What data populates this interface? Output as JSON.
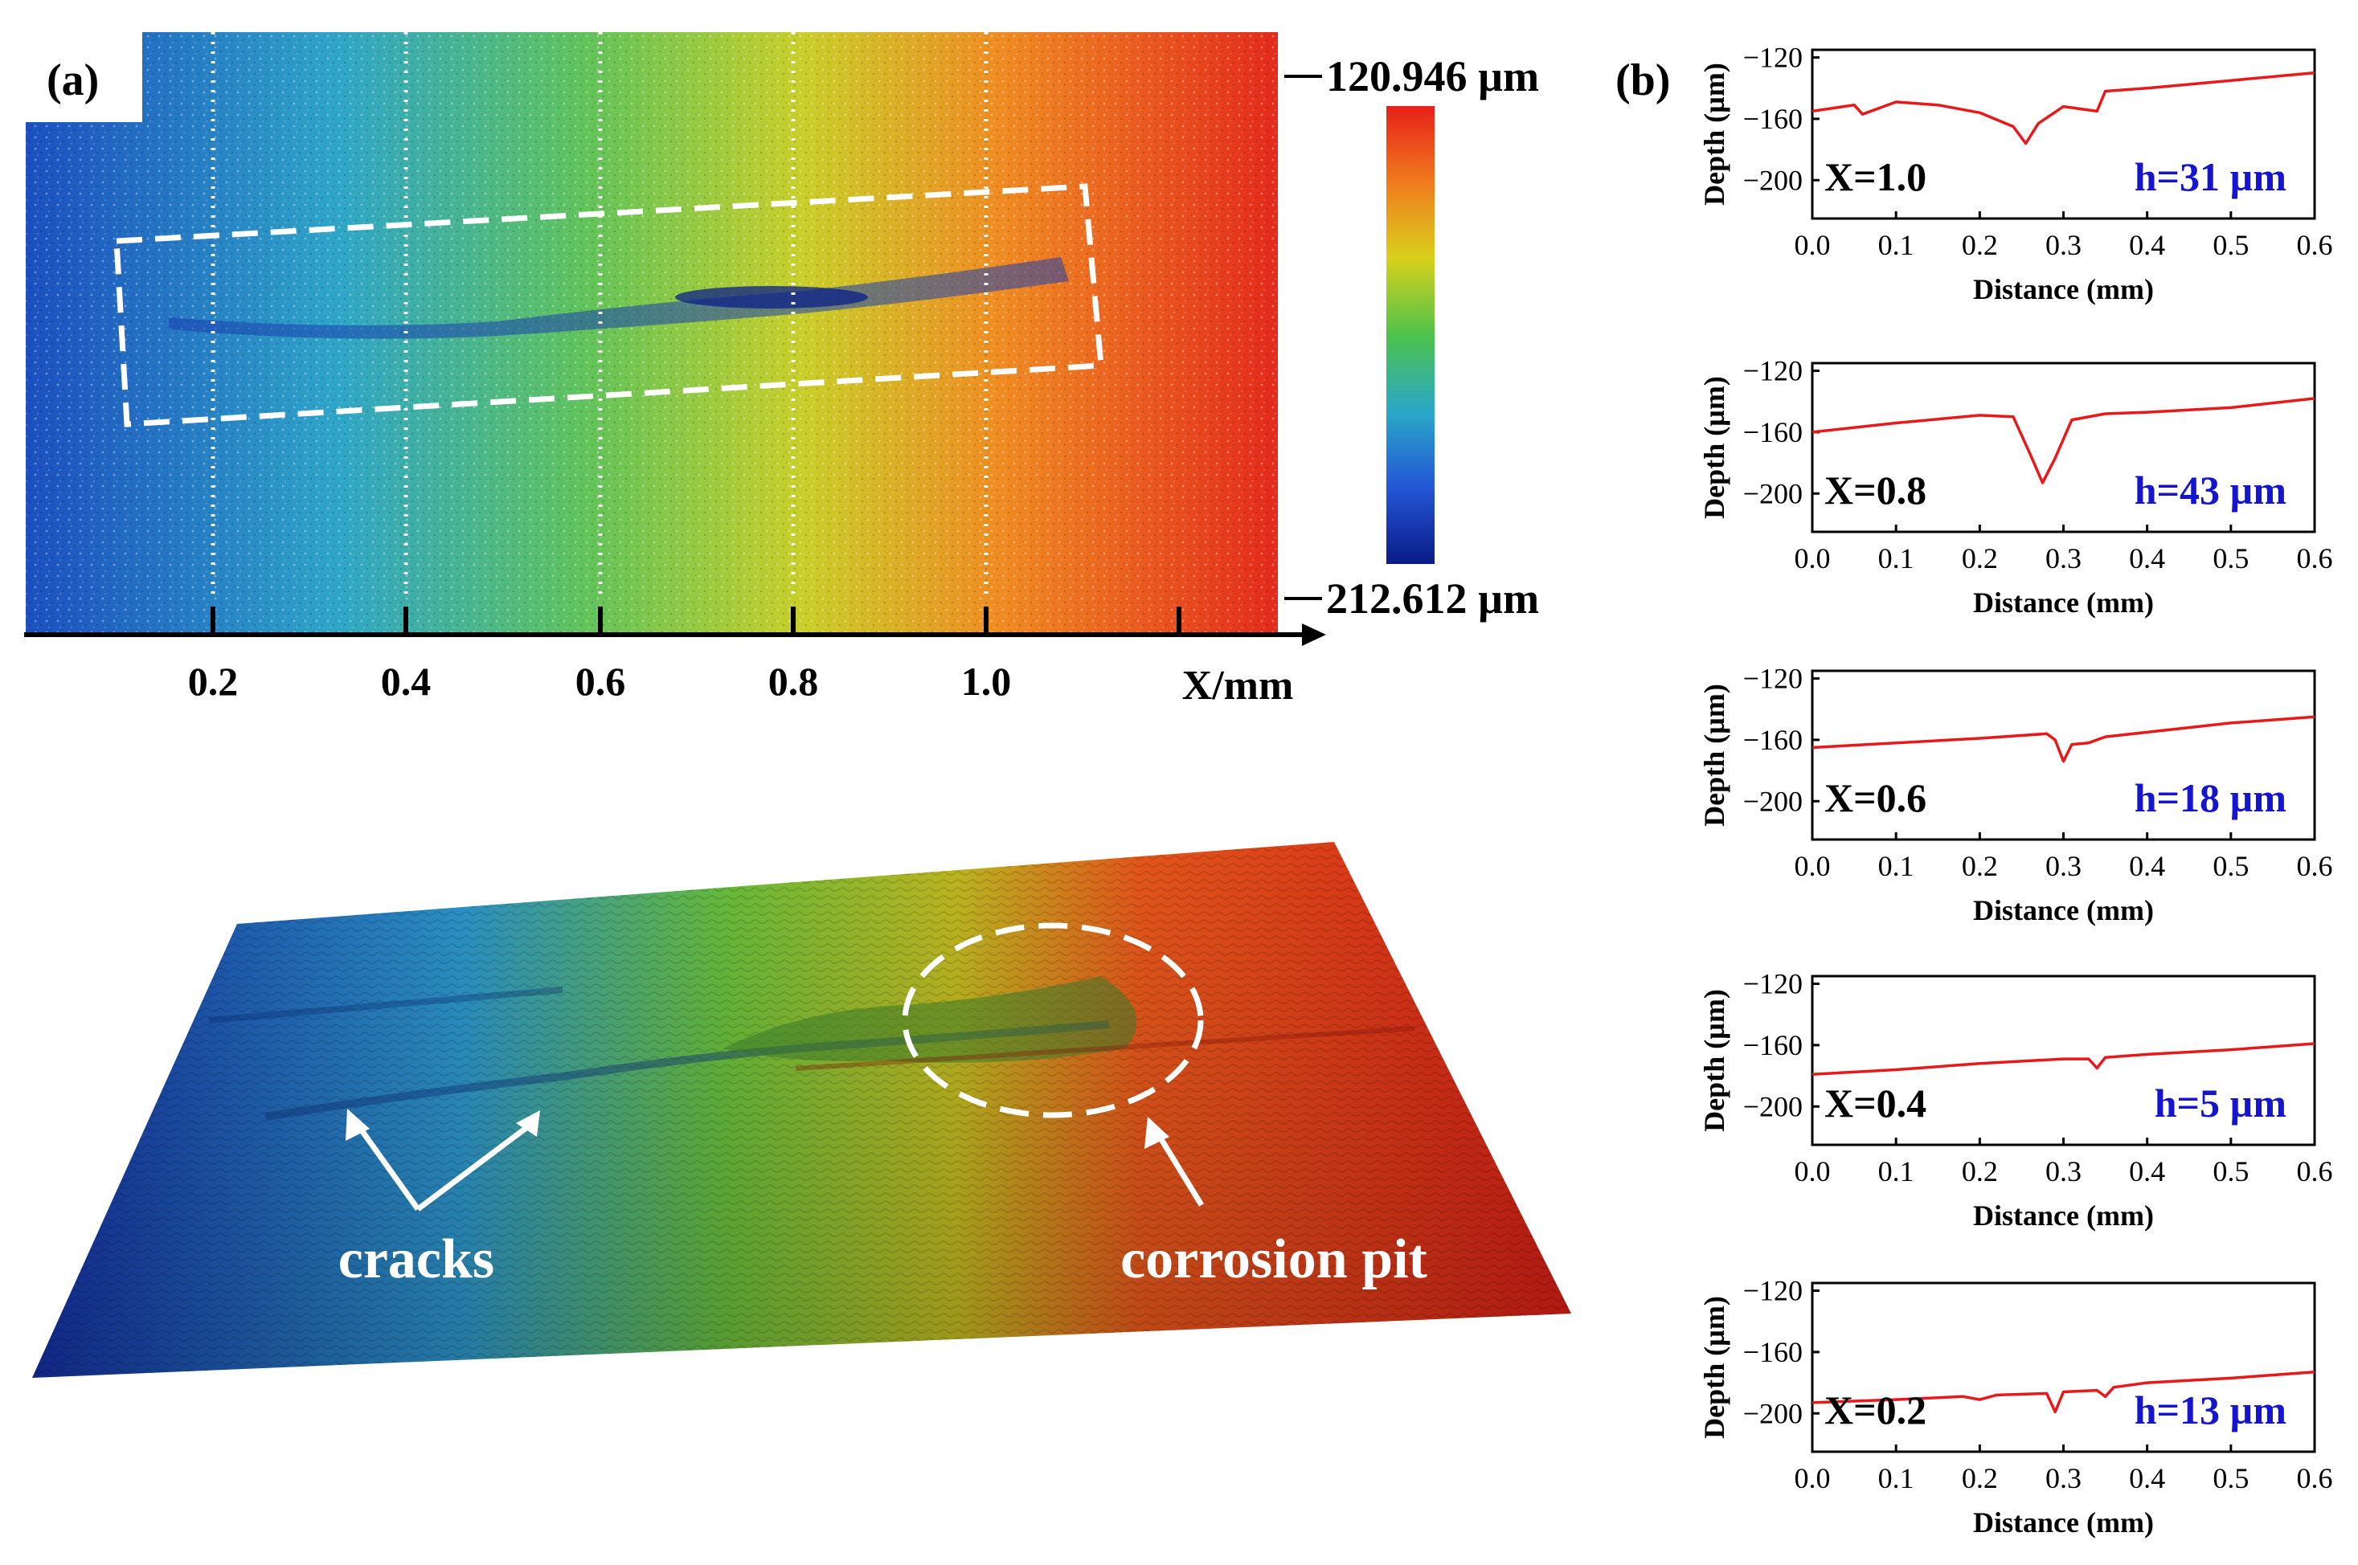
{
  "panel_a": {
    "label": "(a)",
    "x_axis_label": "X/mm",
    "x_ticks": [
      "0.2",
      "0.4",
      "0.6",
      "0.8",
      "1.0"
    ],
    "colorbar_max": "120.946 µm",
    "colorbar_min": "212.612 µm",
    "colorbar_colors": [
      "#e8201a",
      "#f07a1e",
      "#d9d11c",
      "#4ec24a",
      "#2aa8c8",
      "#2456d6",
      "#0a1b86"
    ],
    "annotation_cracks": "cracks",
    "annotation_pit": "corrosion pit"
  },
  "panel_b": {
    "label": "(b)"
  },
  "chart_data": [
    {
      "type": "line",
      "title": "X=1.0",
      "annotation_h": "h=31 µm",
      "xlabel": "Distance (mm)",
      "ylabel": "Depth (µm)",
      "xlim": [
        0,
        0.6
      ],
      "ylim": [
        -225,
        -115
      ],
      "x_ticks": [
        "0.0",
        "0.1",
        "0.2",
        "0.3",
        "0.4",
        "0.5",
        "0.6"
      ],
      "y_ticks": [
        "−120",
        "−160",
        "−200"
      ],
      "series": [
        {
          "name": "X=1.0",
          "color": "#e8191b",
          "x": [
            0,
            0.05,
            0.06,
            0.1,
            0.15,
            0.2,
            0.24,
            0.255,
            0.27,
            0.3,
            0.34,
            0.35,
            0.4,
            0.5,
            0.6
          ],
          "y": [
            -155,
            -151,
            -157,
            -149,
            -151,
            -156,
            -165,
            -176,
            -163,
            -152,
            -155,
            -142,
            -140,
            -135,
            -130
          ]
        }
      ]
    },
    {
      "type": "line",
      "title": "X=0.8",
      "annotation_h": "h=43 µm",
      "xlabel": "Distance (mm)",
      "ylabel": "Depth (µm)",
      "xlim": [
        0,
        0.6
      ],
      "ylim": [
        -225,
        -115
      ],
      "x_ticks": [
        "0.0",
        "0.1",
        "0.2",
        "0.3",
        "0.4",
        "0.5",
        "0.6"
      ],
      "y_ticks": [
        "−120",
        "−160",
        "−200"
      ],
      "series": [
        {
          "name": "X=0.8",
          "color": "#e8191b",
          "x": [
            0,
            0.1,
            0.2,
            0.24,
            0.26,
            0.275,
            0.29,
            0.31,
            0.35,
            0.4,
            0.5,
            0.6
          ],
          "y": [
            -160,
            -154,
            -149,
            -150,
            -174,
            -193,
            -177,
            -152,
            -148,
            -147,
            -144,
            -138
          ]
        }
      ]
    },
    {
      "type": "line",
      "title": "X=0.6",
      "annotation_h": "h=18 µm",
      "xlabel": "Distance (mm)",
      "ylabel": "Depth (µm)",
      "xlim": [
        0,
        0.6
      ],
      "ylim": [
        -225,
        -115
      ],
      "x_ticks": [
        "0.0",
        "0.1",
        "0.2",
        "0.3",
        "0.4",
        "0.5",
        "0.6"
      ],
      "y_ticks": [
        "−120",
        "−160",
        "−200"
      ],
      "series": [
        {
          "name": "X=0.6",
          "color": "#e8191b",
          "x": [
            0,
            0.1,
            0.2,
            0.28,
            0.29,
            0.3,
            0.31,
            0.33,
            0.35,
            0.4,
            0.5,
            0.6
          ],
          "y": [
            -165,
            -162,
            -159,
            -156,
            -160,
            -174,
            -163,
            -162,
            -158,
            -155,
            -149,
            -145
          ]
        }
      ]
    },
    {
      "type": "line",
      "title": "X=0.4",
      "annotation_h": "h=5 µm",
      "xlabel": "Distance (mm)",
      "ylabel": "Depth (µm)",
      "xlim": [
        0,
        0.6
      ],
      "ylim": [
        -225,
        -115
      ],
      "x_ticks": [
        "0.0",
        "0.1",
        "0.2",
        "0.3",
        "0.4",
        "0.5",
        "0.6"
      ],
      "y_ticks": [
        "−120",
        "−160",
        "−200"
      ],
      "series": [
        {
          "name": "X=0.4",
          "color": "#e8191b",
          "x": [
            0,
            0.1,
            0.2,
            0.3,
            0.33,
            0.34,
            0.35,
            0.4,
            0.5,
            0.6
          ],
          "y": [
            -179,
            -176,
            -172,
            -169,
            -169,
            -175,
            -168,
            -166,
            -163,
            -159
          ]
        }
      ]
    },
    {
      "type": "line",
      "title": "X=0.2",
      "annotation_h": "h=13 µm",
      "xlabel": "Distance (mm)",
      "ylabel": "Depth (µm)",
      "xlim": [
        0,
        0.6
      ],
      "ylim": [
        -225,
        -115
      ],
      "x_ticks": [
        "0.0",
        "0.1",
        "0.2",
        "0.3",
        "0.4",
        "0.5",
        "0.6"
      ],
      "y_ticks": [
        "−120",
        "−160",
        "−200"
      ],
      "series": [
        {
          "name": "X=0.2",
          "color": "#e8191b",
          "x": [
            0,
            0.1,
            0.18,
            0.2,
            0.22,
            0.28,
            0.29,
            0.3,
            0.34,
            0.35,
            0.36,
            0.4,
            0.5,
            0.6
          ],
          "y": [
            -193,
            -191,
            -189,
            -191,
            -188,
            -187,
            -199,
            -186,
            -185,
            -189,
            -183,
            -180,
            -177,
            -173
          ]
        }
      ]
    }
  ]
}
